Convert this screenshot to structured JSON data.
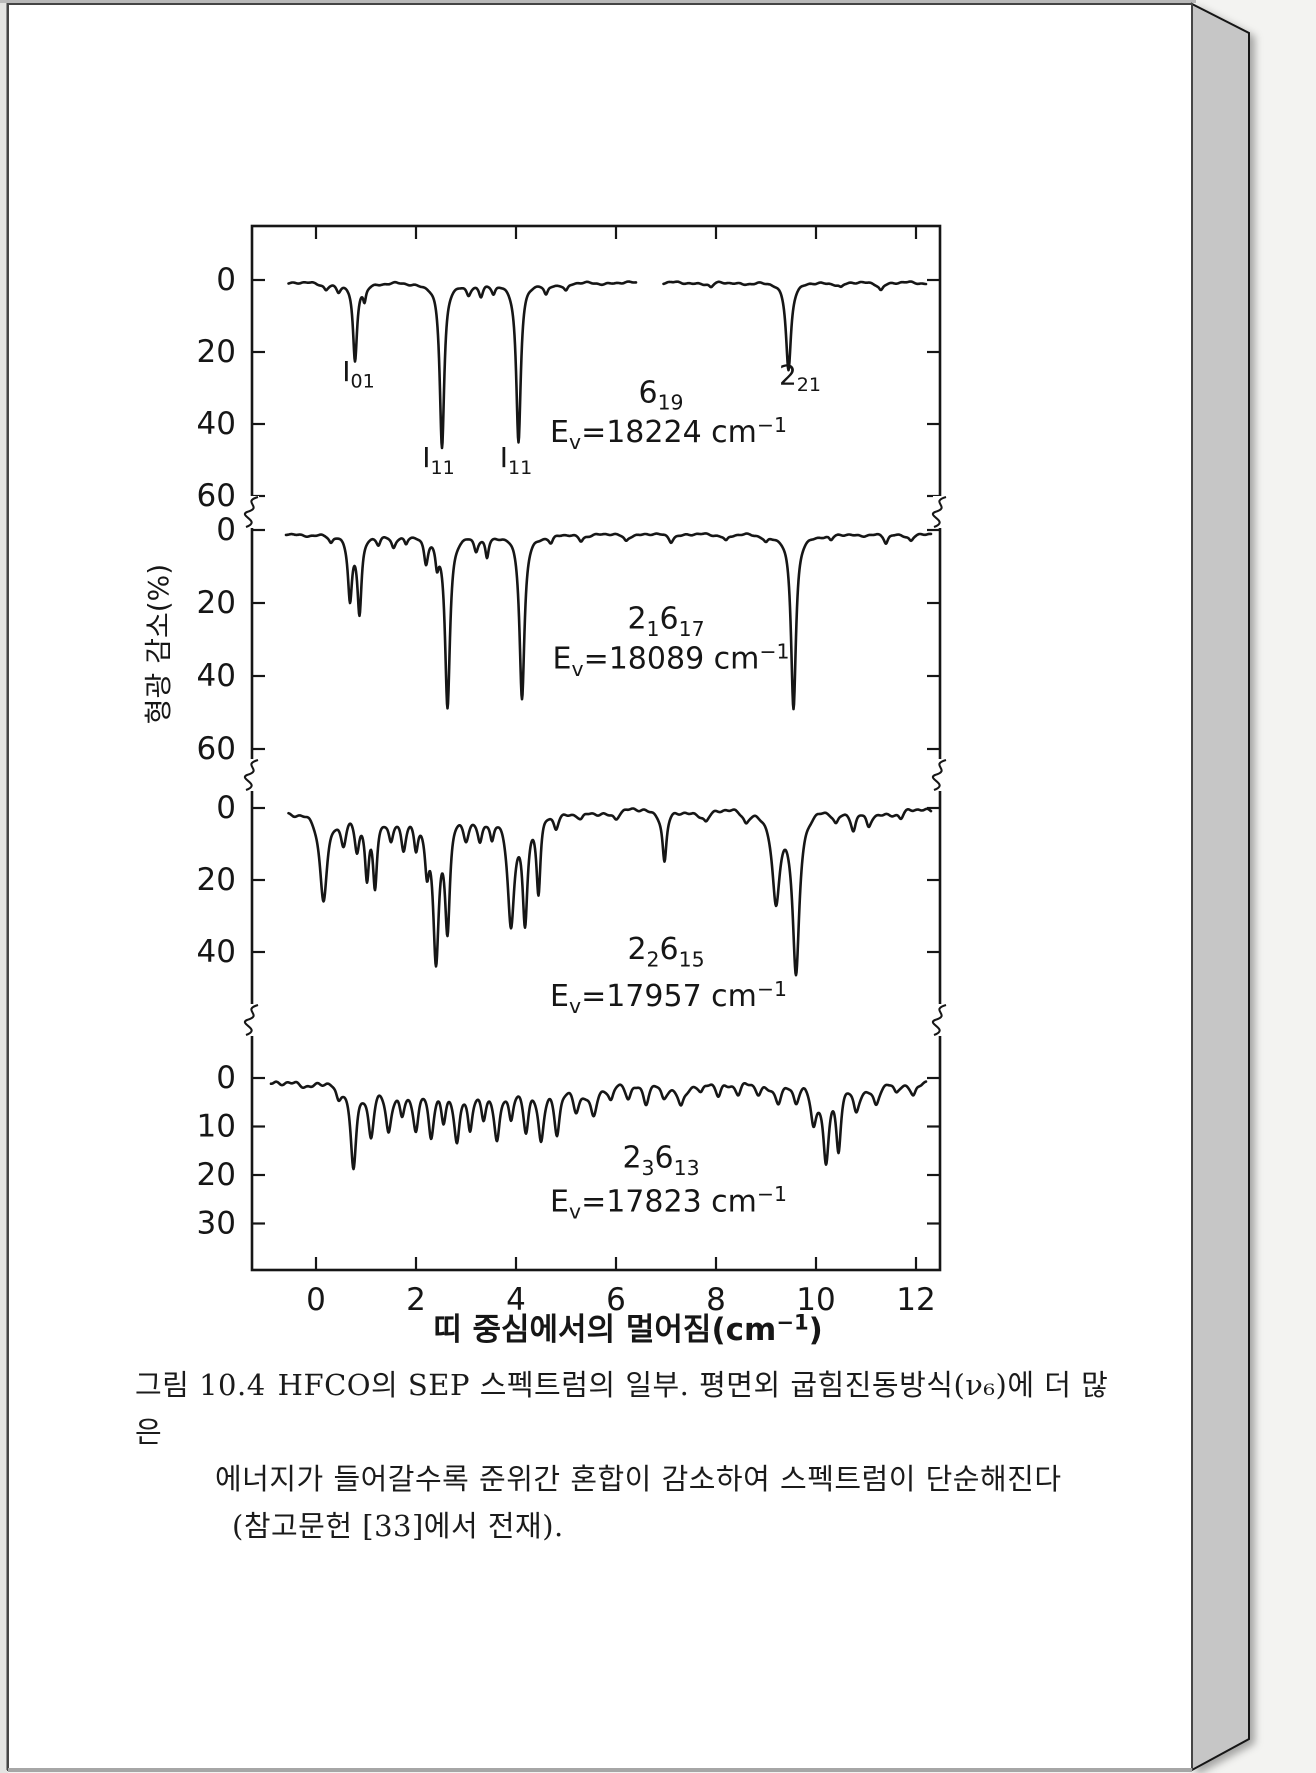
{
  "page": {
    "background_color": "#f3f3f1",
    "paper_color": "#ffffff",
    "page_edge_color": "#c6c6c6",
    "ink_color": "#161616"
  },
  "caption": {
    "label": "그림 10.4",
    "lines": [
      "HFCO의 SEP 스펙트럼의 일부. 평면외 굽힘진동방식(ν₆)에 더 많은",
      "에너지가 들어갈수록 준위간 혼합이 감소하여 스펙트럼이 단순해진다",
      "(참고문헌 [33]에서 전재)."
    ]
  },
  "chart_data": {
    "type": "line",
    "title": "",
    "xlabel": "띠 중심에서의 멀어짐(cm⁻¹)",
    "ylabel": "형광 감소(%)",
    "x_ticks": [
      0,
      2,
      4,
      6,
      8,
      10,
      12
    ],
    "x_range": [
      -1.3,
      12.5
    ],
    "y_axis_direction": "down",
    "grid": false,
    "legend": "none",
    "note": "Four stacked SEP dip spectra of HFCO sharing one frame, separated by axis breaks; y = fluorescence depletion (%) increasing downward",
    "panels": [
      {
        "state": "6₁₉",
        "ev_value": "18224",
        "ev_label": "Eᵥ=18224 cm⁻¹",
        "y_ticks": [
          0,
          20,
          40,
          60
        ],
        "peak_labels": [
          {
            "text": "I₀₁",
            "x": 0.85,
            "depth_pct": 28
          },
          {
            "text": "I₁₁",
            "x": 2.45,
            "depth_pct": 52
          },
          {
            "text": "I₁₁",
            "x": 4.0,
            "depth_pct": 52
          },
          {
            "text": "2₂₁",
            "x": 9.68,
            "depth_pct": 29
          }
        ],
        "state_pos": {
          "x": 6.9,
          "depth_pct": 34
        },
        "ev_pos": {
          "x": 7.05,
          "depth_pct": 45
        },
        "trace": {
          "start": -0.55,
          "end": 12.2,
          "gaps": [
            [
              6.4,
              6.95
            ]
          ],
          "baseline_pct": 0.8,
          "noise_pct": 0.5
        },
        "peaks": [
          [
            0.2,
            1.5,
            0.05
          ],
          [
            0.45,
            2,
            0.05
          ],
          [
            0.78,
            22,
            0.05
          ],
          [
            0.97,
            4,
            0.035
          ],
          [
            2.52,
            46,
            0.055
          ],
          [
            3.05,
            2.5,
            0.05
          ],
          [
            3.3,
            3.5,
            0.05
          ],
          [
            3.55,
            2.5,
            0.045
          ],
          [
            4.05,
            44,
            0.055
          ],
          [
            4.6,
            3,
            0.05
          ],
          [
            5.0,
            2,
            0.05
          ],
          [
            7.9,
            1.2,
            0.05
          ],
          [
            9.45,
            24,
            0.06
          ],
          [
            10.5,
            1,
            0.05
          ],
          [
            11.3,
            1.8,
            0.05
          ]
        ]
      },
      {
        "state": "2₁6₁₇",
        "ev_value": "18089",
        "ev_label": "Eᵥ=18089 cm⁻¹",
        "y_ticks": [
          0,
          20,
          40,
          60
        ],
        "peak_labels": [],
        "state_pos": {
          "x": 7.0,
          "depth_pct": 27
        },
        "ev_pos": {
          "x": 7.1,
          "depth_pct": 38
        },
        "trace": {
          "start": -0.6,
          "end": 12.3,
          "gaps": [],
          "baseline_pct": 1.2,
          "noise_pct": 0.5
        },
        "peaks": [
          [
            0.3,
            2,
            0.05
          ],
          [
            0.68,
            17,
            0.05
          ],
          [
            0.87,
            21,
            0.05
          ],
          [
            1.25,
            2.5,
            0.05
          ],
          [
            1.55,
            3,
            0.05
          ],
          [
            1.8,
            2,
            0.04
          ],
          [
            2.2,
            7.5,
            0.05
          ],
          [
            2.42,
            6,
            0.04
          ],
          [
            2.63,
            47,
            0.06
          ],
          [
            3.2,
            4,
            0.05
          ],
          [
            3.42,
            5.5,
            0.04
          ],
          [
            4.12,
            45,
            0.06
          ],
          [
            4.7,
            2,
            0.05
          ],
          [
            5.3,
            1.5,
            0.05
          ],
          [
            6.2,
            1.5,
            0.05
          ],
          [
            7.1,
            1.8,
            0.05
          ],
          [
            8.2,
            1.5,
            0.05
          ],
          [
            9.0,
            1.5,
            0.05
          ],
          [
            9.55,
            48,
            0.06
          ],
          [
            10.3,
            1.5,
            0.05
          ],
          [
            11.4,
            2.5,
            0.05
          ],
          [
            11.9,
            1.5,
            0.05
          ]
        ]
      },
      {
        "state": "2₂6₁₅",
        "ev_value": "17957",
        "ev_label": "Eᵥ=17957 cm⁻¹",
        "y_ticks": [
          0,
          20,
          40
        ],
        "peak_labels": [],
        "state_pos": {
          "x": 7.0,
          "depth_pct": 42
        },
        "ev_pos": {
          "x": 7.05,
          "depth_pct": 55
        },
        "trace": {
          "start": -0.55,
          "end": 12.3,
          "gaps": [],
          "baseline_pct": 0.8,
          "noise_pct": 0.9
        },
        "peaks": [
          [
            0.15,
            24,
            0.09
          ],
          [
            0.55,
            8,
            0.07
          ],
          [
            0.82,
            10,
            0.06
          ],
          [
            1.02,
            17,
            0.05
          ],
          [
            1.18,
            19,
            0.05
          ],
          [
            1.5,
            7,
            0.06
          ],
          [
            1.75,
            9,
            0.06
          ],
          [
            2.0,
            8,
            0.05
          ],
          [
            2.22,
            12,
            0.05
          ],
          [
            2.4,
            40,
            0.07
          ],
          [
            2.63,
            31,
            0.06
          ],
          [
            3.0,
            6,
            0.07
          ],
          [
            3.28,
            7,
            0.06
          ],
          [
            3.52,
            6,
            0.05
          ],
          [
            3.9,
            30,
            0.08
          ],
          [
            4.18,
            29,
            0.06
          ],
          [
            4.45,
            22,
            0.05
          ],
          [
            4.8,
            4,
            0.06
          ],
          [
            5.3,
            2,
            0.07
          ],
          [
            6.0,
            1.5,
            0.06
          ],
          [
            6.97,
            14,
            0.05
          ],
          [
            7.8,
            2,
            0.06
          ],
          [
            8.6,
            2.5,
            0.06
          ],
          [
            9.2,
            25,
            0.09
          ],
          [
            9.6,
            44,
            0.08
          ],
          [
            10.4,
            3,
            0.06
          ],
          [
            10.75,
            5,
            0.06
          ],
          [
            11.05,
            4,
            0.06
          ],
          [
            11.7,
            2,
            0.06
          ]
        ]
      },
      {
        "state": "2₃6₁₃",
        "ev_value": "17823",
        "ev_label": "Eᵥ=17823 cm⁻¹",
        "y_ticks": [
          0,
          10,
          20,
          30
        ],
        "peak_labels": [],
        "state_pos": {
          "x": 6.9,
          "depth_pct": 18.5
        },
        "ev_pos": {
          "x": 7.05,
          "depth_pct": 27.5
        },
        "trace": {
          "start": -0.9,
          "end": 12.2,
          "gaps": [],
          "baseline_pct": 0.8,
          "noise_pct": 0.9
        },
        "peaks": [
          [
            0.45,
            4,
            0.07
          ],
          [
            0.75,
            17,
            0.07
          ],
          [
            1.1,
            10,
            0.07
          ],
          [
            1.45,
            9,
            0.07
          ],
          [
            1.72,
            5,
            0.06
          ],
          [
            2.0,
            9,
            0.07
          ],
          [
            2.3,
            11,
            0.07
          ],
          [
            2.55,
            7,
            0.06
          ],
          [
            2.82,
            11,
            0.07
          ],
          [
            3.08,
            9,
            0.06
          ],
          [
            3.35,
            6,
            0.06
          ],
          [
            3.62,
            10,
            0.07
          ],
          [
            3.9,
            7,
            0.06
          ],
          [
            4.2,
            10,
            0.07
          ],
          [
            4.5,
            11,
            0.07
          ],
          [
            4.82,
            10,
            0.07
          ],
          [
            5.2,
            5,
            0.08
          ],
          [
            5.55,
            6,
            0.08
          ],
          [
            5.9,
            4,
            0.07
          ],
          [
            6.25,
            3,
            0.07
          ],
          [
            6.6,
            4,
            0.07
          ],
          [
            6.95,
            3,
            0.07
          ],
          [
            7.3,
            4,
            0.07
          ],
          [
            7.7,
            2.5,
            0.07
          ],
          [
            8.05,
            3,
            0.07
          ],
          [
            8.45,
            2.5,
            0.07
          ],
          [
            8.85,
            2,
            0.07
          ],
          [
            9.25,
            3,
            0.07
          ],
          [
            9.6,
            4,
            0.07
          ],
          [
            9.95,
            8,
            0.07
          ],
          [
            10.2,
            16,
            0.07
          ],
          [
            10.45,
            13,
            0.06
          ],
          [
            10.8,
            5,
            0.07
          ],
          [
            11.2,
            4,
            0.07
          ],
          [
            11.6,
            2.5,
            0.07
          ],
          [
            11.95,
            3,
            0.07
          ]
        ]
      }
    ]
  }
}
